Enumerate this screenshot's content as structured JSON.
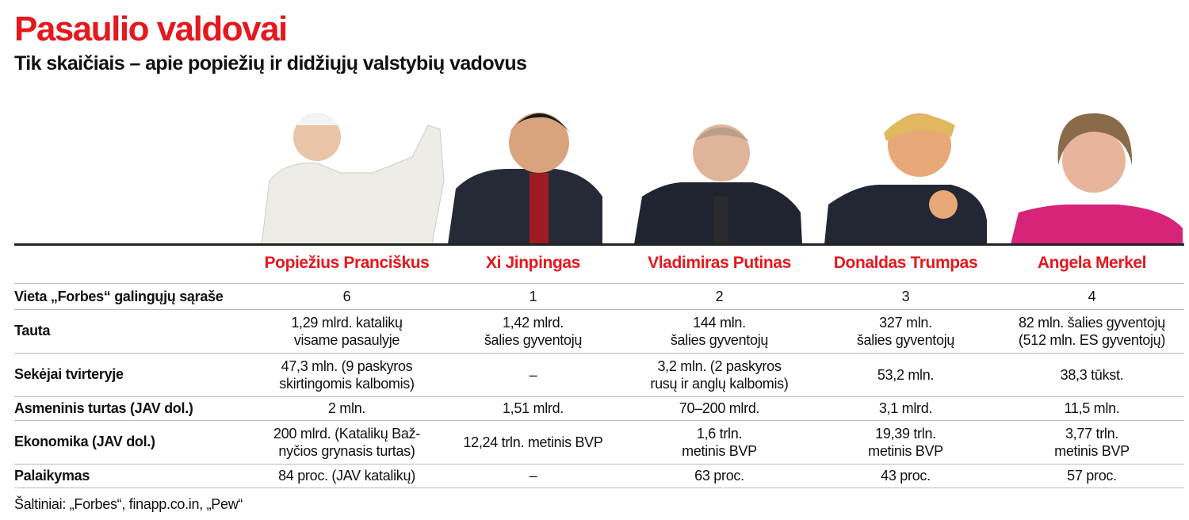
{
  "header": {
    "title": "Pasaulio valdovai",
    "subtitle": "Tik skaičiais – apie popiežių ir didžiųjų valstybių vadovus"
  },
  "table": {
    "columns": [
      "Popiežius Pranciškus",
      "Xi Jinpingas",
      "Vladimiras Putinas",
      "Donaldas Trumpas",
      "Angela Merkel"
    ],
    "rows": [
      {
        "label": "Vieta „Forbes“ galingųjų sąraše",
        "cells": [
          [
            "6"
          ],
          [
            "1"
          ],
          [
            "2"
          ],
          [
            "3"
          ],
          [
            "4"
          ]
        ]
      },
      {
        "label": "Tauta",
        "cells": [
          [
            "1,29 mlrd. katalikų",
            "visame pasaulyje"
          ],
          [
            "1,42 mlrd.",
            "šalies gyventojų"
          ],
          [
            "144 mln.",
            "šalies gyventojų"
          ],
          [
            "327 mln.",
            "šalies gyventojų"
          ],
          [
            "82 mln. šalies gyventojų",
            "(512 mln. ES gyventojų)"
          ]
        ]
      },
      {
        "label": "Sekėjai tvirteryje",
        "cells": [
          [
            "47,3 mln. (9 paskyros",
            "skirtingomis kalbomis)"
          ],
          [
            "–"
          ],
          [
            "3,2 mln. (2 paskyros",
            "rusų ir anglų kalbomis)"
          ],
          [
            "53,2 mln."
          ],
          [
            "38,3 tūkst."
          ]
        ]
      },
      {
        "label": "Asmeninis turtas (JAV dol.)",
        "cells": [
          [
            "2 mln."
          ],
          [
            "1,51 mlrd."
          ],
          [
            "70–200 mlrd."
          ],
          [
            "3,1 mlrd."
          ],
          [
            "11,5 mln."
          ]
        ]
      },
      {
        "label": "Ekonomika (JAV dol.)",
        "cells": [
          [
            "200 mlrd. (Katalikų Baž-",
            "nyčios grynasis turtas)"
          ],
          [
            "12,24 trln. metinis BVP"
          ],
          [
            "1,6 trln.",
            "metinis BVP"
          ],
          [
            "19,39 trln.",
            "metinis BVP"
          ],
          [
            "3,77 trln.",
            "metinis BVP"
          ]
        ]
      },
      {
        "label": "Palaikymas",
        "cells": [
          [
            "84 proc. (JAV katalikų)"
          ],
          [
            "–"
          ],
          [
            "63 proc."
          ],
          [
            "43 proc."
          ],
          [
            "57 proc."
          ]
        ]
      }
    ]
  },
  "footer": {
    "source": "Šaltiniai: „Forbes“, finapp.co.in, „Pew“"
  }
}
